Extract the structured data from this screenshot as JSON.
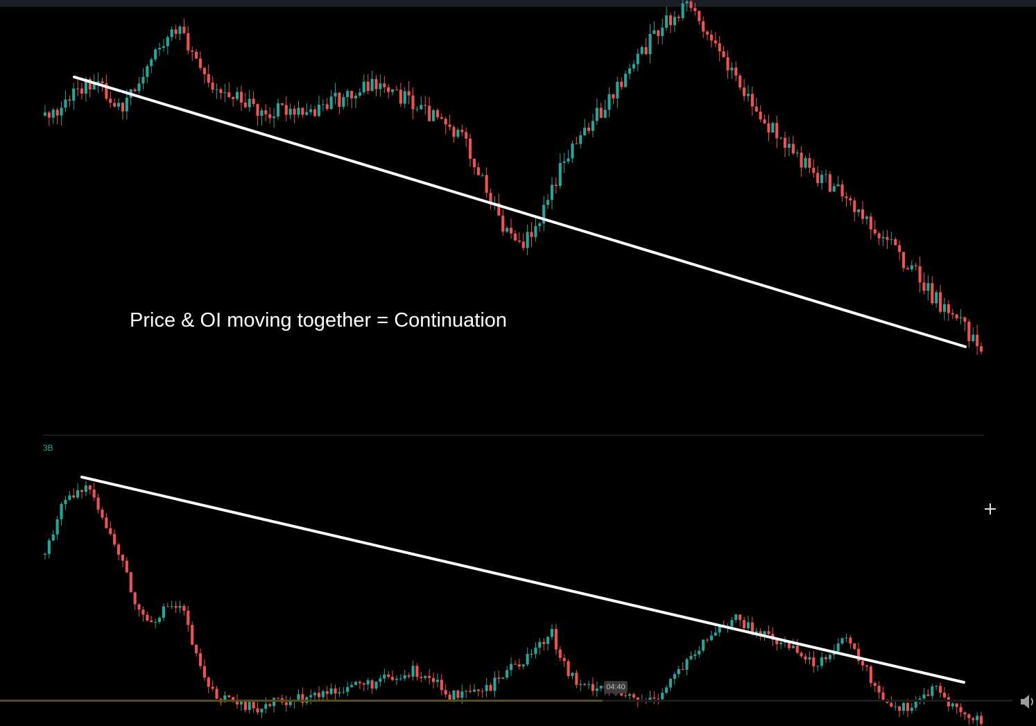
{
  "annotation": {
    "text": "Price & OI moving together = Continuation"
  },
  "oi_pane": {
    "axis_label": "3B"
  },
  "player": {
    "time_tooltip": "04:40",
    "progress_fraction": 0.595
  },
  "colors": {
    "up": "#26a69a",
    "down": "#ef5350",
    "trendline": "#ffffff",
    "background": "#000000"
  },
  "icons": {
    "cursor": "crosshair-cursor-icon",
    "volume": "volume-icon"
  },
  "chart_data": [
    {
      "type": "candlestick",
      "name": "Price",
      "ohlc_close_path": [
        38,
        40,
        48,
        54,
        62,
        52,
        44,
        50,
        66,
        78,
        86,
        96,
        72,
        60,
        58,
        52,
        48,
        44,
        40,
        42,
        44,
        43,
        40,
        46,
        48,
        52,
        56,
        58,
        52,
        50,
        46,
        40,
        36,
        30,
        22,
        8,
        -10,
        -28,
        -36,
        -40,
        -30,
        -10,
        10,
        20,
        30,
        40,
        52,
        62,
        72,
        82,
        92,
        100,
        104,
        96,
        86,
        72,
        60,
        48,
        40,
        30,
        20,
        12,
        6,
        0,
        -6,
        -12,
        -20,
        -28,
        -36,
        -44,
        -54,
        -62,
        -72,
        -80,
        -88,
        -96,
        -104
      ],
      "trendlines": [
        {
          "from": [
            0.03,
            0.0
          ],
          "to": [
            0.98,
            -1.0
          ],
          "label": ""
        }
      ]
    },
    {
      "type": "candlestick",
      "name": "",
      "ohlc_close_path": [
        120,
        140,
        146,
        150,
        132,
        118,
        96,
        92,
        98,
        96,
        72,
        60,
        56,
        54,
        54,
        56,
        58,
        58,
        60,
        62,
        64,
        64,
        66,
        66,
        70,
        68,
        60,
        58,
        60,
        62,
        70,
        74,
        80,
        86,
        70,
        62,
        64,
        62,
        58,
        56,
        60,
        68,
        74,
        82,
        90,
        92,
        88,
        84,
        82,
        80,
        72,
        78,
        84,
        76,
        64,
        56,
        54,
        58,
        62,
        56,
        50,
        48
      ],
      "trendlines": [
        {
          "from": [
            0.04,
            0.0
          ],
          "to": [
            0.98,
            -1.0
          ],
          "label": ""
        }
      ]
    }
  ]
}
